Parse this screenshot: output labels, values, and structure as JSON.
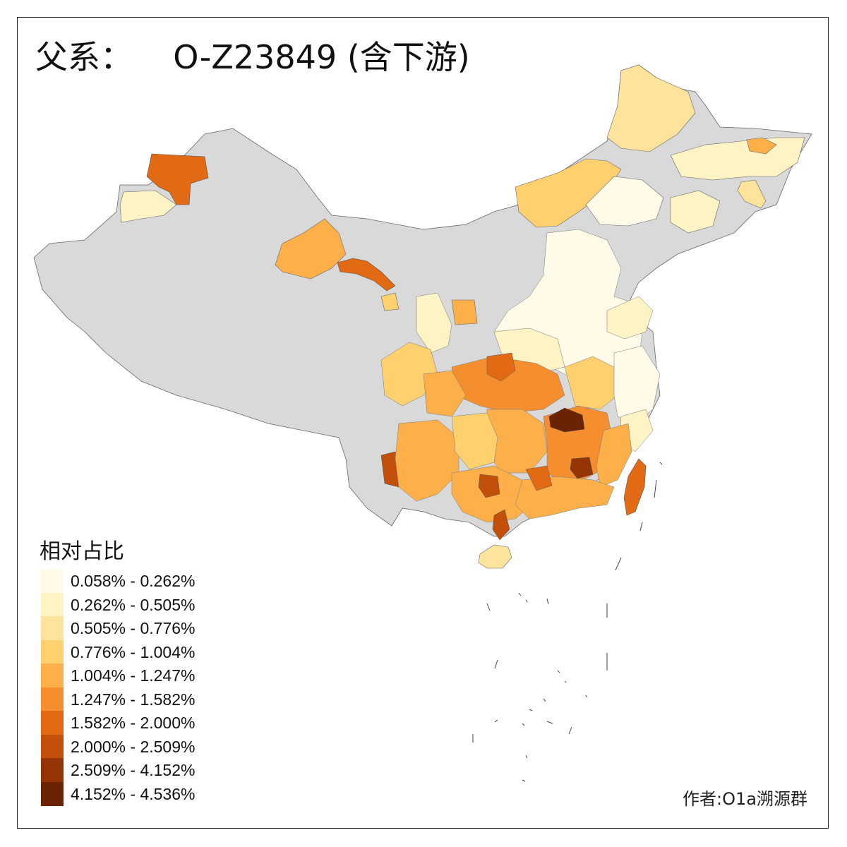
{
  "title": {
    "prefix": "父系：",
    "haplogroup": "O-Z23849",
    "suffix": "(含下游)"
  },
  "legend": {
    "title": "相对占比",
    "bins": [
      {
        "label": "0.058% - 0.262%",
        "color": "#fffbe8"
      },
      {
        "label": "0.262% - 0.505%",
        "color": "#fef3c4"
      },
      {
        "label": "0.505% - 0.776%",
        "color": "#fee39c"
      },
      {
        "label": "0.776% - 1.004%",
        "color": "#fed06e"
      },
      {
        "label": "1.004% - 1.247%",
        "color": "#fdb04a"
      },
      {
        "label": "1.247% - 1.582%",
        "color": "#f58e2e"
      },
      {
        "label": "1.582% - 2.000%",
        "color": "#e36a14"
      },
      {
        "label": "2.000% - 2.509%",
        "color": "#c24f0a"
      },
      {
        "label": "2.509% - 4.152%",
        "color": "#953506"
      },
      {
        "label": "4.152% - 4.536%",
        "color": "#6b2304"
      }
    ],
    "no_data_color": "#d9d9d9"
  },
  "author": "作者:O1a溯源群"
}
